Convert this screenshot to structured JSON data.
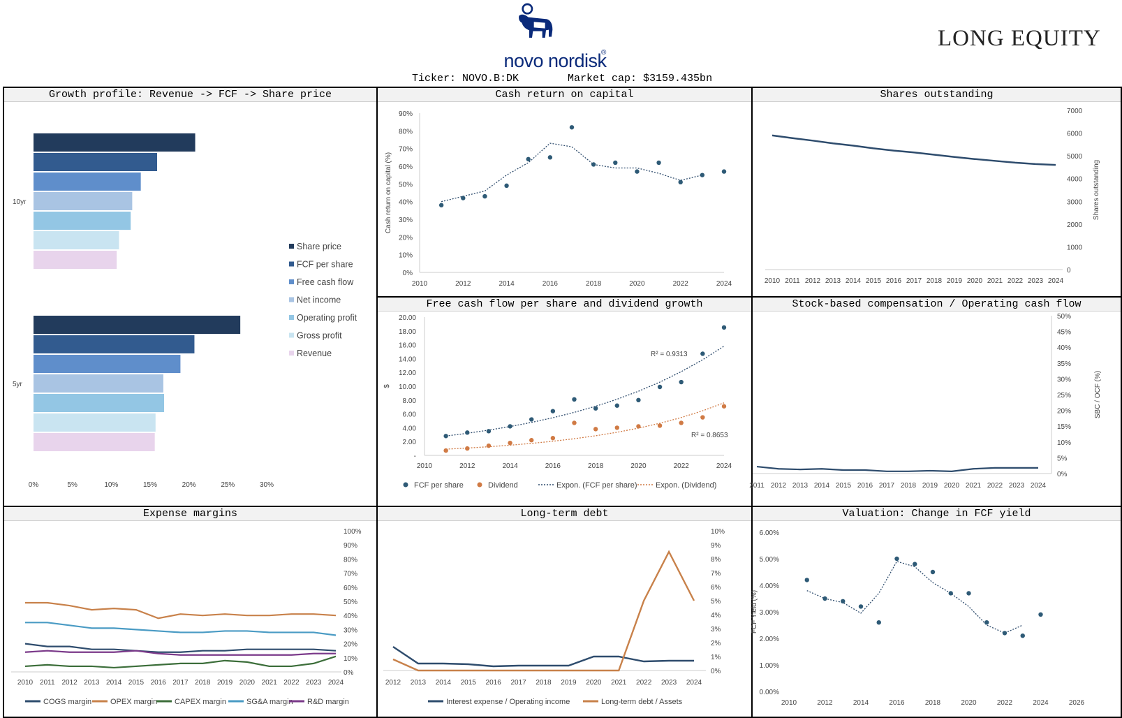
{
  "header": {
    "brand": "novo nordisk",
    "registered_mark": "®",
    "right_logo": "LONG EQUITY",
    "ticker_label": "Ticker: NOVO.B:DK",
    "market_cap_label": "Market cap: $3159.435bn"
  },
  "colors": {
    "navy": "#2e4c6d",
    "orange": "#c8814a",
    "green": "#3c6e3a",
    "teal": "#4a9bc4",
    "purple": "#7b3a8a",
    "brand": "#0a2a7a"
  },
  "chart_data": [
    {
      "id": "growth",
      "type": "bar",
      "orientation": "horizontal",
      "title": "Growth profile: Revenue -> FCF -> Share price",
      "groups": [
        "10yr",
        "5yr"
      ],
      "series": [
        {
          "name": "Share price",
          "color": "#223b5c",
          "values": [
            20.8,
            26.6
          ]
        },
        {
          "name": "FCF per share",
          "color": "#325b8f",
          "values": [
            15.9,
            20.7
          ]
        },
        {
          "name": "Free cash flow",
          "color": "#5f8ecb",
          "values": [
            13.8,
            18.9
          ]
        },
        {
          "name": "Net income",
          "color": "#a9c4e3",
          "values": [
            12.7,
            16.7
          ]
        },
        {
          "name": "Operating profit",
          "color": "#93c6e4",
          "values": [
            12.5,
            16.8
          ]
        },
        {
          "name": "Gross profit",
          "color": "#c9e4f1",
          "values": [
            11.0,
            15.7
          ]
        },
        {
          "name": "Revenue",
          "color": "#e8d4ec",
          "values": [
            10.7,
            15.6
          ]
        }
      ],
      "xticks": [
        "0%",
        "5%",
        "10%",
        "15%",
        "20%",
        "25%",
        "30%"
      ],
      "xlim": [
        0,
        30
      ]
    },
    {
      "id": "crocc",
      "type": "scatter",
      "title": "Cash return on capital",
      "ylabel": "Cash return on capital (%)",
      "x": [
        2011,
        2012,
        2013,
        2014,
        2015,
        2016,
        2017,
        2018,
        2019,
        2020,
        2021,
        2022,
        2023,
        2024
      ],
      "y": [
        38,
        42,
        43,
        49,
        64,
        65,
        82,
        61,
        62,
        57,
        62,
        51,
        55,
        57
      ],
      "trend": [
        [
          2011,
          40
        ],
        [
          2013,
          46
        ],
        [
          2014,
          55
        ],
        [
          2015,
          62
        ],
        [
          2016,
          73
        ],
        [
          2017,
          71
        ],
        [
          2018,
          61
        ],
        [
          2019,
          59
        ],
        [
          2020,
          59
        ],
        [
          2021,
          56
        ],
        [
          2022,
          52
        ],
        [
          2023,
          55
        ]
      ],
      "xlim": [
        2010,
        2024
      ],
      "ylim": [
        0,
        90
      ],
      "xticks": [
        "2010",
        "2012",
        "2014",
        "2016",
        "2018",
        "2020",
        "2022",
        "2024"
      ],
      "yticks": [
        "0%",
        "10%",
        "20%",
        "30%",
        "40%",
        "50%",
        "60%",
        "70%",
        "80%",
        "90%"
      ]
    },
    {
      "id": "shares",
      "type": "line",
      "title": "Shares outstanding",
      "ylabel": "Shares outstanding",
      "x": [
        2010,
        2011,
        2012,
        2013,
        2014,
        2015,
        2016,
        2017,
        2018,
        2019,
        2020,
        2021,
        2022,
        2023,
        2024
      ],
      "y": [
        5900,
        5780,
        5670,
        5550,
        5450,
        5330,
        5230,
        5150,
        5050,
        4950,
        4860,
        4780,
        4700,
        4640,
        4600
      ],
      "xlim": [
        2010,
        2024
      ],
      "ylim": [
        0,
        7000
      ],
      "yticks": [
        "0",
        "1000",
        "2000",
        "3000",
        "4000",
        "5000",
        "6000",
        "7000"
      ]
    },
    {
      "id": "fcf_div",
      "type": "scatter",
      "title": "Free cash flow per share and dividend growth",
      "ylabel": "$",
      "x": [
        2011,
        2012,
        2013,
        2014,
        2015,
        2016,
        2017,
        2018,
        2019,
        2020,
        2021,
        2022,
        2023,
        2024
      ],
      "series": [
        {
          "name": "FCF per share",
          "color": "#2e5a76",
          "values": [
            2.8,
            3.3,
            3.5,
            4.2,
            5.2,
            6.4,
            8.1,
            6.8,
            7.2,
            8.0,
            9.9,
            10.6,
            14.7,
            18.5
          ]
        },
        {
          "name": "Dividend",
          "color": "#d07a44",
          "values": [
            0.7,
            1.0,
            1.4,
            1.8,
            2.2,
            2.5,
            4.7,
            3.8,
            4.0,
            4.2,
            4.3,
            4.7,
            5.5,
            7.1
          ]
        }
      ],
      "trendlines": [
        {
          "name": "Expon. (FCF per share)",
          "color": "#2e4c6d",
          "start": 2.8,
          "end": 15.8,
          "r2": "R² = 0.9313"
        },
        {
          "name": "Expon. (Dividend)",
          "color": "#d07a44",
          "start": 0.9,
          "end": 7.6,
          "r2": "R² = 0.8653"
        }
      ],
      "xlim": [
        2010,
        2024
      ],
      "ylim": [
        0,
        20
      ],
      "xticks": [
        "2010",
        "2012",
        "2014",
        "2016",
        "2018",
        "2020",
        "2022",
        "2024"
      ],
      "yticks": [
        "-",
        "2.00",
        "4.00",
        "6.00",
        "8.00",
        "10.00",
        "12.00",
        "14.00",
        "16.00",
        "18.00",
        "20.00"
      ]
    },
    {
      "id": "sbc",
      "type": "line",
      "title": "Stock-based compensation / Operating cash flow",
      "ylabel": "SBC / OCF (%)",
      "x": [
        2011,
        2012,
        2013,
        2014,
        2015,
        2016,
        2017,
        2018,
        2019,
        2020,
        2021,
        2022,
        2023,
        2024
      ],
      "y": [
        2.2,
        1.5,
        1.3,
        1.5,
        1.1,
        1.1,
        0.7,
        0.7,
        0.9,
        0.7,
        1.5,
        1.8,
        1.8,
        1.8
      ],
      "xlim": [
        2011,
        2024
      ],
      "ylim": [
        0,
        50
      ],
      "yticks": [
        "0%",
        "5%",
        "10%",
        "15%",
        "20%",
        "25%",
        "30%",
        "35%",
        "40%",
        "45%",
        "50%"
      ]
    },
    {
      "id": "expense",
      "type": "line",
      "title": "Expense margins",
      "x": [
        2010,
        2011,
        2012,
        2013,
        2014,
        2015,
        2016,
        2017,
        2018,
        2019,
        2020,
        2021,
        2022,
        2023,
        2024
      ],
      "series": [
        {
          "name": "COGS margin",
          "color": "#2e4c6d",
          "values": [
            20,
            18,
            18,
            16,
            16,
            15,
            14,
            14,
            15,
            15,
            16,
            16,
            16,
            16,
            15
          ]
        },
        {
          "name": "OPEX margin",
          "color": "#c8814a",
          "values": [
            49,
            49,
            47,
            44,
            45,
            44,
            38,
            41,
            40,
            41,
            40,
            40,
            41,
            41,
            40
          ]
        },
        {
          "name": "CAPEX margin",
          "color": "#3c6e3a",
          "values": [
            4,
            5,
            4,
            4,
            3,
            4,
            5,
            6,
            6,
            8,
            7,
            4,
            4,
            6,
            11
          ]
        },
        {
          "name": "SG&A margin",
          "color": "#4a9bc4",
          "values": [
            35,
            35,
            33,
            31,
            31,
            30,
            29,
            28,
            28,
            29,
            29,
            28,
            28,
            28,
            26
          ]
        },
        {
          "name": "R&D margin",
          "color": "#7b3a8a",
          "values": [
            14,
            15,
            14,
            14,
            14,
            15,
            13,
            12,
            12,
            12,
            12,
            12,
            12,
            13,
            13
          ]
        }
      ],
      "xlim": [
        2010,
        2024
      ],
      "ylim": [
        0,
        100
      ],
      "yticks": [
        "0%",
        "10%",
        "20%",
        "30%",
        "40%",
        "50%",
        "60%",
        "70%",
        "80%",
        "90%",
        "100%"
      ]
    },
    {
      "id": "ltd",
      "type": "line",
      "title": "Long-term debt",
      "x": [
        2012,
        2013,
        2014,
        2015,
        2016,
        2017,
        2018,
        2019,
        2020,
        2021,
        2022,
        2023,
        2024
      ],
      "series": [
        {
          "name": "Interest expense / Operating income",
          "color": "#2e4c6d",
          "values": [
            1.7,
            0.5,
            0.5,
            0.45,
            0.3,
            0.35,
            0.35,
            0.35,
            1.0,
            1.0,
            0.65,
            0.7,
            0.7
          ]
        },
        {
          "name": "Long-term debt / Assets",
          "color": "#c8814a",
          "values": [
            0.8,
            0,
            0,
            0,
            0,
            0,
            0,
            0,
            0,
            0,
            5.0,
            8.5,
            5.0
          ]
        }
      ],
      "xlim": [
        2012,
        2024
      ],
      "ylim": [
        0,
        10
      ],
      "yticks": [
        "0%",
        "1%",
        "2%",
        "3%",
        "4%",
        "5%",
        "6%",
        "7%",
        "8%",
        "9%",
        "10%"
      ]
    },
    {
      "id": "fcf_yield",
      "type": "scatter",
      "title": "Valuation: Change in FCF yield",
      "ylabel": "FCF Yield (%)",
      "x": [
        2011,
        2012,
        2013,
        2014,
        2015,
        2016,
        2017,
        2018,
        2019,
        2020,
        2021,
        2022,
        2023,
        2024
      ],
      "y": [
        4.2,
        3.5,
        3.4,
        3.2,
        2.6,
        5.0,
        4.8,
        4.5,
        3.7,
        3.7,
        2.6,
        2.2,
        2.1,
        2.9
      ],
      "trend": [
        [
          2011,
          3.8
        ],
        [
          2012,
          3.5
        ],
        [
          2013,
          3.35
        ],
        [
          2014,
          2.95
        ],
        [
          2015,
          3.7
        ],
        [
          2016,
          4.9
        ],
        [
          2017,
          4.7
        ],
        [
          2018,
          4.1
        ],
        [
          2019,
          3.7
        ],
        [
          2020,
          3.2
        ],
        [
          2021,
          2.5
        ],
        [
          2022,
          2.2
        ],
        [
          2023,
          2.5
        ]
      ],
      "xlim": [
        2010,
        2026
      ],
      "ylim": [
        0,
        6
      ],
      "xticks": [
        "2010",
        "2012",
        "2014",
        "2016",
        "2018",
        "2020",
        "2022",
        "2024",
        "2026"
      ],
      "yticks": [
        "0.00%",
        "1.00%",
        "2.00%",
        "3.00%",
        "4.00%",
        "5.00%",
        "6.00%"
      ]
    }
  ]
}
